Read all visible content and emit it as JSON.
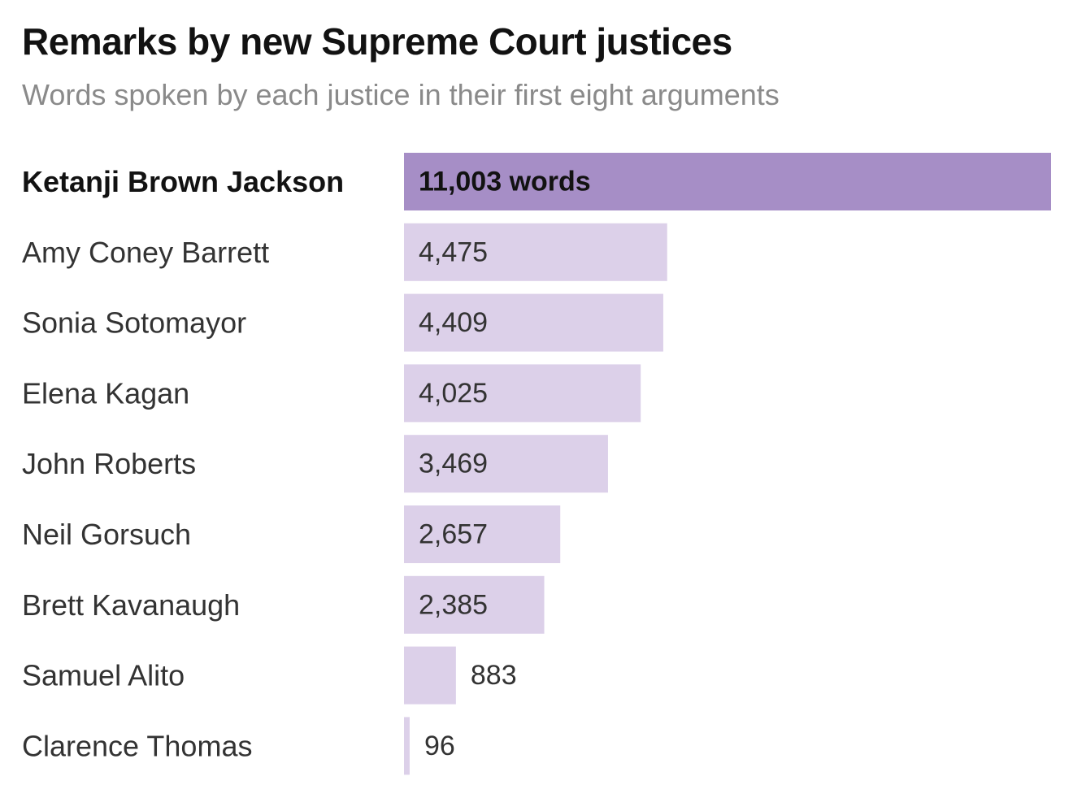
{
  "chart_data": {
    "type": "bar",
    "orientation": "horizontal",
    "title": "Remarks by new Supreme Court justices",
    "subtitle": "Words spoken by each justice in their first eight arguments",
    "categories": [
      "Ketanji Brown Jackson",
      "Amy Coney Barrett",
      "Sonia Sotomayor",
      "Elena Kagan",
      "John Roberts",
      "Neil Gorsuch",
      "Brett Kavanaugh",
      "Samuel Alito",
      "Clarence Thomas"
    ],
    "values": [
      11003,
      4475,
      4409,
      4025,
      3469,
      2657,
      2385,
      883,
      96
    ],
    "value_labels": [
      "11,003 words",
      "4,475",
      "4,409",
      "4,025",
      "3,469",
      "2,657",
      "2,385",
      "883",
      "96"
    ],
    "highlight_index": 0,
    "xlim": [
      0,
      11003
    ],
    "grid": false,
    "colors": {
      "highlight": "#a68ec6",
      "bar": "#dcd0e9",
      "text": "#333333",
      "title": "#121212",
      "subtitle": "#8a8a8a"
    }
  }
}
